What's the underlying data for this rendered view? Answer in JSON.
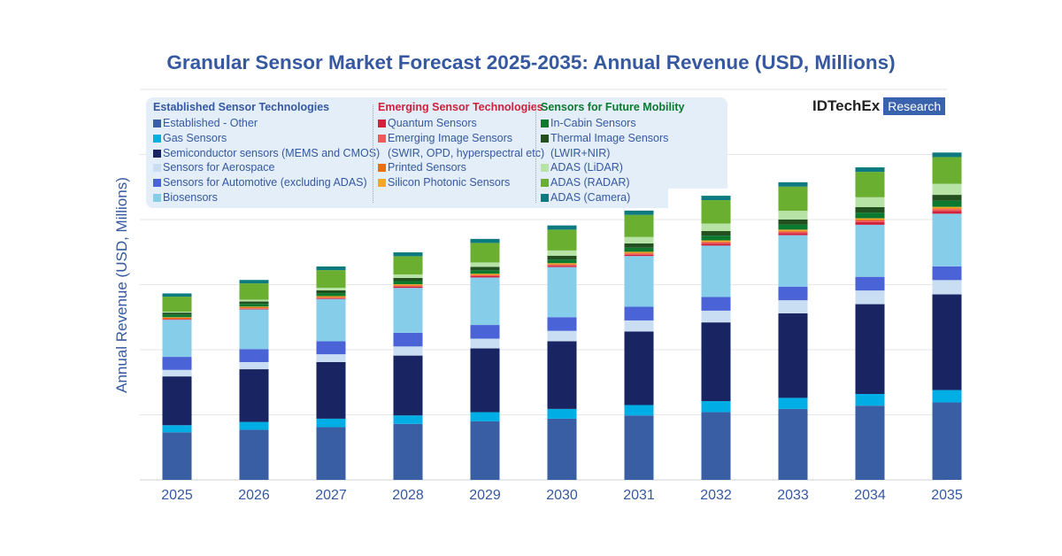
{
  "title": "Granular Sensor Market Forecast 2025-2035: Annual Revenue (USD, Millions)",
  "logo": {
    "brand": "IDTechEx",
    "tag": "Research"
  },
  "legend": {
    "groups": [
      {
        "title": "Established Sensor Technologies",
        "color": "#3558a0",
        "items": [
          0,
          1,
          2,
          3,
          4,
          5
        ]
      },
      {
        "title": "Emerging Sensor Technologies",
        "color": "#d0223e",
        "items": [
          6,
          7,
          8,
          9
        ]
      },
      {
        "title": "Sensors for Future Mobility",
        "color": "#0b7a2e",
        "items": [
          10,
          11,
          12,
          13,
          14
        ]
      }
    ]
  },
  "chart_data": {
    "type": "bar",
    "stacked": true,
    "title": "Granular Sensor Market Forecast 2025-2035: Annual Revenue (USD, Millions)",
    "xlabel": "",
    "ylabel": "Annual Revenue (USD, Millions)",
    "y_tick_labels_shown": false,
    "ylim": [
      0,
      6
    ],
    "grid": true,
    "legend_position": "top-left",
    "categories": [
      "2025",
      "2026",
      "2027",
      "2028",
      "2029",
      "2030",
      "2031",
      "2032",
      "2033",
      "2034",
      "2035"
    ],
    "series": [
      {
        "name": "Established - Other",
        "color": "#3a5ea3",
        "values": [
          0.73,
          0.77,
          0.81,
          0.86,
          0.9,
          0.94,
          0.99,
          1.04,
          1.09,
          1.14,
          1.19
        ]
      },
      {
        "name": "Gas Sensors",
        "color": "#00aee6",
        "values": [
          0.11,
          0.12,
          0.13,
          0.13,
          0.14,
          0.15,
          0.16,
          0.17,
          0.17,
          0.18,
          0.19
        ]
      },
      {
        "name": "Semiconductor sensors (MEMS and CMOS)",
        "color": "#182562",
        "values": [
          0.75,
          0.81,
          0.87,
          0.92,
          0.98,
          1.04,
          1.13,
          1.21,
          1.3,
          1.38,
          1.47
        ]
      },
      {
        "name": "Sensors for Aerospace",
        "color": "#c9def3",
        "values": [
          0.1,
          0.11,
          0.12,
          0.14,
          0.15,
          0.16,
          0.17,
          0.18,
          0.2,
          0.21,
          0.22
        ]
      },
      {
        "name": "Sensors for Automotive (excluding ADAS)",
        "color": "#4a63d6",
        "values": [
          0.2,
          0.2,
          0.2,
          0.21,
          0.21,
          0.21,
          0.21,
          0.21,
          0.21,
          0.21,
          0.21
        ]
      },
      {
        "name": "Biosensors",
        "color": "#86cdea",
        "values": [
          0.57,
          0.61,
          0.65,
          0.69,
          0.73,
          0.77,
          0.78,
          0.79,
          0.79,
          0.8,
          0.81
        ]
      },
      {
        "name": "Quantum Sensors",
        "color": "#d0223e",
        "values": [
          0.01,
          0.01,
          0.01,
          0.02,
          0.02,
          0.02,
          0.02,
          0.03,
          0.03,
          0.04,
          0.04
        ]
      },
      {
        "name": "Emerging Image Sensors (SWIR, OPD, hyperspectral etc)",
        "color": "#ee5a5a",
        "values": [
          0.005,
          0.007,
          0.009,
          0.011,
          0.013,
          0.015,
          0.018,
          0.021,
          0.024,
          0.027,
          0.03
        ]
      },
      {
        "name": "Printed Sensors",
        "color": "#e8700d",
        "values": [
          0.02,
          0.018,
          0.016,
          0.014,
          0.012,
          0.01,
          0.011,
          0.012,
          0.013,
          0.014,
          0.015
        ]
      },
      {
        "name": "Silicon Photonic Sensors",
        "color": "#f5a623",
        "values": [
          0.005,
          0.007,
          0.009,
          0.011,
          0.013,
          0.015,
          0.016,
          0.017,
          0.018,
          0.019,
          0.02
        ]
      },
      {
        "name": "In-Cabin Sensors",
        "color": "#0b7a2e",
        "values": [
          0.04,
          0.043,
          0.046,
          0.049,
          0.052,
          0.055,
          0.063,
          0.071,
          0.079,
          0.087,
          0.095
        ]
      },
      {
        "name": "Thermal Image Sensors (LWIR+NIR)",
        "color": "#23501f",
        "values": [
          0.03,
          0.036,
          0.042,
          0.048,
          0.054,
          0.06,
          0.066,
          0.072,
          0.078,
          0.084,
          0.09
        ]
      },
      {
        "name": "ADAS (LiDAR)",
        "color": "#b7e3a6",
        "values": [
          0.015,
          0.028,
          0.041,
          0.054,
          0.067,
          0.08,
          0.098,
          0.116,
          0.134,
          0.152,
          0.17
        ]
      },
      {
        "name": "ADAS (RADAR)",
        "color": "#6aaf30",
        "values": [
          0.23,
          0.25,
          0.27,
          0.28,
          0.3,
          0.32,
          0.34,
          0.36,
          0.37,
          0.39,
          0.41
        ]
      },
      {
        "name": "ADAS (Camera)",
        "color": "#0d7a80",
        "values": [
          0.05,
          0.053,
          0.056,
          0.059,
          0.062,
          0.065,
          0.066,
          0.067,
          0.068,
          0.069,
          0.07
        ]
      }
    ]
  }
}
